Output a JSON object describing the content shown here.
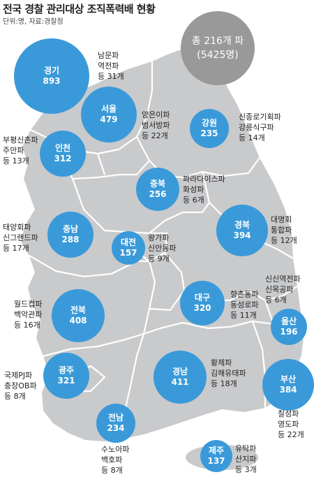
{
  "header": {
    "title": "전국 경찰 관리대상 조직폭력배 현황",
    "source": "단위:명, 자료:경찰청"
  },
  "total": {
    "line1": "총 216개 파",
    "line2": "(5425명)"
  },
  "colors": {
    "bubble": "#3a9ad9",
    "total": "#999999",
    "land": "#c9cacc",
    "border": "#ffffff"
  },
  "regions": [
    {
      "name": "경기",
      "count": "893",
      "gangs": [
        "남문파",
        "역전파",
        "등 31개"
      ]
    },
    {
      "name": "서울",
      "count": "479",
      "gangs": [
        "양은이파",
        "범서방파",
        "등 22개"
      ]
    },
    {
      "name": "강원",
      "count": "235",
      "gangs": [
        "신종로기획파",
        "강릉식구파",
        "등 14개"
      ]
    },
    {
      "name": "인천",
      "count": "312",
      "gangs": [
        "부평신촌파",
        "주안파",
        "등 13개"
      ]
    },
    {
      "name": "충북",
      "count": "256",
      "gangs": [
        "파라다이스파",
        "화성파",
        "등 6개"
      ]
    },
    {
      "name": "경북",
      "count": "394",
      "gangs": [
        "대명회",
        "통합파",
        "등 12개"
      ]
    },
    {
      "name": "충남",
      "count": "288",
      "gangs": [
        "태양회파",
        "신그랜드파",
        "등 17개"
      ]
    },
    {
      "name": "대전",
      "count": "157",
      "gangs": [
        "왕가파",
        "신안동파",
        "등 9개"
      ]
    },
    {
      "name": "대구",
      "count": "320",
      "gangs": [
        "향촌동파",
        "동성로파",
        "등 11개"
      ]
    },
    {
      "name": "울산",
      "count": "196",
      "gangs": [
        "신신역전파",
        "신목공파",
        "등 6개"
      ]
    },
    {
      "name": "전북",
      "count": "408",
      "gangs": [
        "월드컵파",
        "백악관파",
        "등 16개"
      ]
    },
    {
      "name": "경남",
      "count": "411",
      "gangs": [
        "황제파",
        "김해유태파",
        "등 18개"
      ]
    },
    {
      "name": "부산",
      "count": "384",
      "gangs": [
        "칠성파",
        "영도파",
        "등 22개"
      ]
    },
    {
      "name": "광주",
      "count": "321",
      "gangs": [
        "국제PJ파",
        "충장OB파",
        "등 8개"
      ]
    },
    {
      "name": "전남",
      "count": "234",
      "gangs": [
        "수노아파",
        "백호파",
        "등 8개"
      ]
    },
    {
      "name": "제주",
      "count": "137",
      "gangs": [
        "유탁파",
        "산지파",
        "등 3개"
      ]
    }
  ]
}
